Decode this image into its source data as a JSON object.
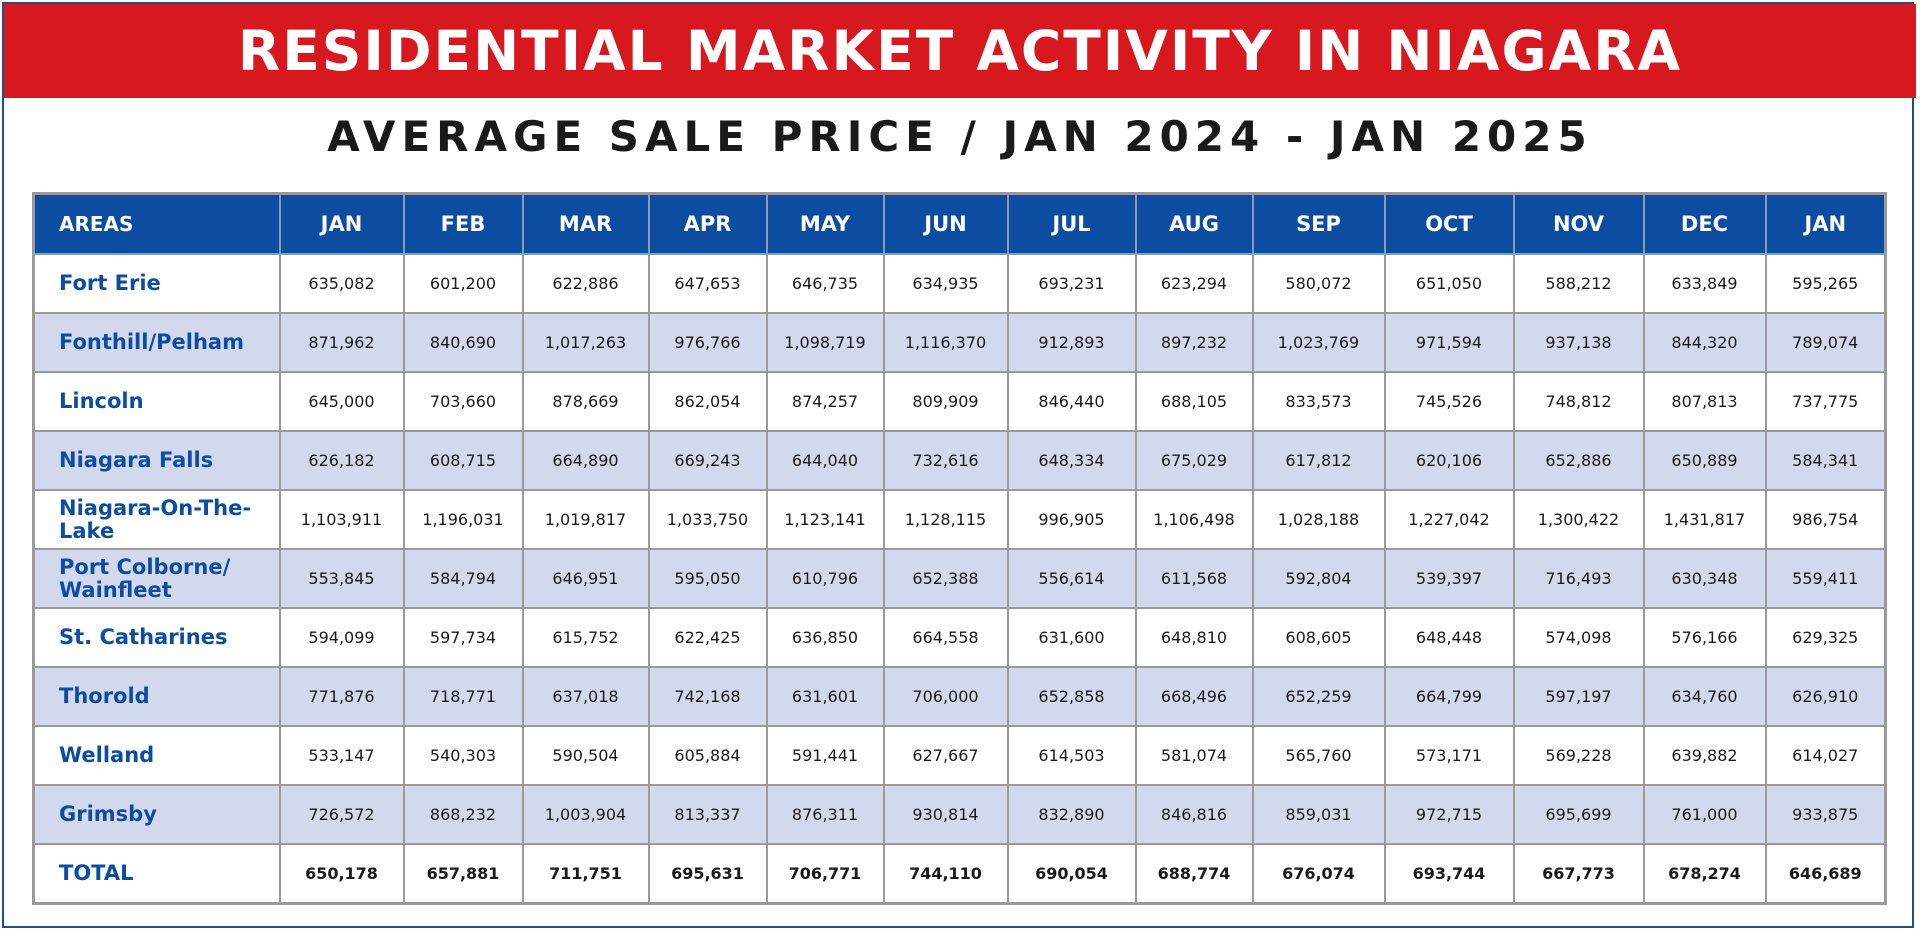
{
  "header": {
    "title": "RESIDENTIAL MARKET ACTIVITY IN NIAGARA",
    "subtitle": "AVERAGE SALE PRICE / JAN 2024 - JAN 2025"
  },
  "colors": {
    "banner": "#d8181f",
    "header_row": "#0c4da2",
    "area_text": "#0c4da2",
    "shaded_row": "#d3d9ec"
  },
  "chart_data": {
    "type": "table",
    "title": "AVERAGE SALE PRICE / JAN 2024 - JAN 2025",
    "row_header_label": "AREAS",
    "columns": [
      "JAN",
      "FEB",
      "MAR",
      "APR",
      "MAY",
      "JUN",
      "JUL",
      "AUG",
      "SEP",
      "OCT",
      "NOV",
      "DEC",
      "JAN"
    ],
    "rows": [
      {
        "area": "Fort Erie",
        "values": [
          "635,082",
          "601,200",
          "622,886",
          "647,653",
          "646,735",
          "634,935",
          "693,231",
          "623,294",
          "580,072",
          "651,050",
          "588,212",
          "633,849",
          "595,265"
        ]
      },
      {
        "area": "Fonthill/Pelham",
        "values": [
          "871,962",
          "840,690",
          "1,017,263",
          "976,766",
          "1,098,719",
          "1,116,370",
          "912,893",
          "897,232",
          "1,023,769",
          "971,594",
          "937,138",
          "844,320",
          "789,074"
        ]
      },
      {
        "area": "Lincoln",
        "values": [
          "645,000",
          "703,660",
          "878,669",
          "862,054",
          "874,257",
          "809,909",
          "846,440",
          "688,105",
          "833,573",
          "745,526",
          "748,812",
          "807,813",
          "737,775"
        ]
      },
      {
        "area": "Niagara Falls",
        "values": [
          "626,182",
          "608,715",
          "664,890",
          "669,243",
          "644,040",
          "732,616",
          "648,334",
          "675,029",
          "617,812",
          "620,106",
          "652,886",
          "650,889",
          "584,341"
        ]
      },
      {
        "area": "Niagara-On-The-Lake",
        "values": [
          "1,103,911",
          "1,196,031",
          "1,019,817",
          "1,033,750",
          "1,123,141",
          "1,128,115",
          "996,905",
          "1,106,498",
          "1,028,188",
          "1,227,042",
          "1,300,422",
          "1,431,817",
          "986,754"
        ]
      },
      {
        "area": "Port Colborne/ Wainfleet",
        "values": [
          "553,845",
          "584,794",
          "646,951",
          "595,050",
          "610,796",
          "652,388",
          "556,614",
          "611,568",
          "592,804",
          "539,397",
          "716,493",
          "630,348",
          "559,411"
        ]
      },
      {
        "area": "St. Catharines",
        "values": [
          "594,099",
          "597,734",
          "615,752",
          "622,425",
          "636,850",
          "664,558",
          "631,600",
          "648,810",
          "608,605",
          "648,448",
          "574,098",
          "576,166",
          "629,325"
        ]
      },
      {
        "area": "Thorold",
        "values": [
          "771,876",
          "718,771",
          "637,018",
          "742,168",
          "631,601",
          "706,000",
          "652,858",
          "668,496",
          "652,259",
          "664,799",
          "597,197",
          "634,760",
          "626,910"
        ]
      },
      {
        "area": "Welland",
        "values": [
          "533,147",
          "540,303",
          "590,504",
          "605,884",
          "591,441",
          "627,667",
          "614,503",
          "581,074",
          "565,760",
          "573,171",
          "569,228",
          "639,882",
          "614,027"
        ]
      },
      {
        "area": "Grimsby",
        "values": [
          "726,572",
          "868,232",
          "1,003,904",
          "813,337",
          "876,311",
          "930,814",
          "832,890",
          "846,816",
          "859,031",
          "972,715",
          "695,699",
          "761,000",
          "933,875"
        ]
      },
      {
        "area": "TOTAL",
        "values": [
          "650,178",
          "657,881",
          "711,751",
          "695,631",
          "706,771",
          "744,110",
          "690,054",
          "688,774",
          "676,074",
          "693,744",
          "667,773",
          "678,274",
          "646,689"
        ],
        "is_total": true
      }
    ]
  }
}
